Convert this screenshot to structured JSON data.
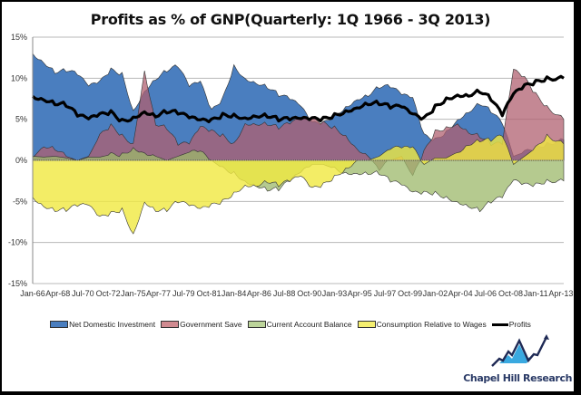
{
  "chart_data": {
    "type": "area",
    "title": "Profits as % of GNP(Quarterly: 1Q 1966 - 3Q 2013)",
    "xlabel": "",
    "ylabel": "",
    "ylim": [
      -15,
      15
    ],
    "y_ticks": [
      "15%",
      "10%",
      "5%",
      "0%",
      "-5%",
      "-10%",
      "-15%"
    ],
    "y_tick_values": [
      15,
      10,
      5,
      0,
      -5,
      -10,
      -15
    ],
    "x_range": [
      1966.0,
      2013.5
    ],
    "x_tick_labels": [
      "Jan-66",
      "Apr-68",
      "Jul-70",
      "Oct-72",
      "Jan-75",
      "Apr-77",
      "Jul-79",
      "Oct-81",
      "Jan-84",
      "Apr-86",
      "Jul-88",
      "Oct-90",
      "Jan-93",
      "Apr-95",
      "Jul-97",
      "Oct-99",
      "Jan-02",
      "Apr-04",
      "Jul-06",
      "Oct-08",
      "Jan-11",
      "Apr-13"
    ],
    "x_tick_values": [
      1966.0,
      1968.25,
      1970.5,
      1972.75,
      1975.0,
      1977.25,
      1979.5,
      1981.75,
      1984.0,
      1986.25,
      1988.5,
      1990.75,
      1993.0,
      1995.25,
      1997.5,
      1999.75,
      2002.0,
      2004.25,
      2006.5,
      2008.75,
      2011.0,
      2013.25
    ],
    "grid": true,
    "legend_position": "bottom",
    "x": [
      1966,
      1967,
      1968,
      1969,
      1970,
      1971,
      1972,
      1973,
      1974,
      1975,
      1976,
      1977,
      1978,
      1979,
      1980,
      1981,
      1982,
      1983,
      1984,
      1985,
      1986,
      1987,
      1988,
      1989,
      1990,
      1991,
      1992,
      1993,
      1994,
      1995,
      1996,
      1997,
      1998,
      1999,
      2000,
      2001,
      2002,
      2003,
      2004,
      2005,
      2006,
      2007,
      2008,
      2009,
      2010,
      2011,
      2012,
      2013.5
    ],
    "series": [
      {
        "name": "Net Domestic Investment",
        "color": "#4a7ebf",
        "values": [
          13,
          12,
          10.8,
          11,
          10.5,
          9,
          9.5,
          11,
          10.5,
          6,
          8.5,
          10,
          11,
          11.5,
          9,
          9.5,
          6,
          7.5,
          11.5,
          10,
          9.5,
          9,
          8,
          7.5,
          6.5,
          4.5,
          4.5,
          5.5,
          6.5,
          7.5,
          8,
          9,
          9,
          8,
          7.5,
          3,
          2.5,
          3.5,
          5,
          6,
          7,
          6,
          4.5,
          0.5,
          1,
          1.5,
          2,
          2.5
        ]
      },
      {
        "name": "Government Save",
        "color": "#c0707a",
        "values": [
          0.3,
          1.8,
          1.5,
          0.5,
          0,
          0.5,
          3,
          4.2,
          3,
          2,
          11,
          4.5,
          4,
          2,
          2,
          4,
          3.5,
          3,
          2,
          4.5,
          4.5,
          4.5,
          4,
          4.5,
          5,
          5,
          4.5,
          4,
          3,
          1.5,
          0.5,
          -1,
          0,
          0.5,
          -2,
          1,
          3.5,
          4,
          4.5,
          3.5,
          3,
          2,
          2,
          11,
          10,
          8,
          6.5,
          5
        ]
      },
      {
        "name": "Current Account Balance",
        "color": "#9cb86a",
        "values": [
          0.5,
          0.4,
          0.5,
          0.3,
          0,
          0.4,
          0.4,
          0.7,
          0.7,
          1.5,
          1,
          0.5,
          0,
          0.5,
          1,
          1,
          0,
          -1,
          -1.5,
          -2.5,
          -3,
          -3.5,
          -3.5,
          -2.5,
          -1.5,
          -0.5,
          -0.5,
          -1,
          -1.5,
          -1.5,
          -1.5,
          -1.5,
          -2.5,
          -3,
          -4,
          -4,
          -4,
          -4.5,
          -5,
          -5.5,
          -6,
          -5,
          -4.5,
          -2.5,
          -3,
          -3,
          -2.5,
          -2.5
        ]
      },
      {
        "name": "Consumption Relative to Wages",
        "color": "#f0e84a",
        "values": [
          -4.5,
          -5.5,
          -6,
          -6,
          -5.5,
          -5.5,
          -7,
          -6.5,
          -6,
          -9,
          -5,
          -6,
          -6,
          -5,
          -5.5,
          -6,
          -5.5,
          -5,
          -4,
          -3,
          -3,
          -2.5,
          -3,
          -2.5,
          -2,
          -3.5,
          -3,
          -2,
          -1,
          0,
          0,
          0.5,
          1.5,
          1.5,
          1.5,
          -0.5,
          0.3,
          0.3,
          1,
          2,
          2.5,
          2.5,
          3,
          -0.5,
          0.5,
          1.5,
          3,
          2
        ]
      },
      {
        "name": "Profits",
        "color": "#000000",
        "values": [
          7.8,
          7.5,
          7,
          6.8,
          5.5,
          5,
          5.5,
          5.8,
          4.8,
          5.2,
          6,
          5.5,
          6,
          5.8,
          5.2,
          4.8,
          4.8,
          5.5,
          5.5,
          5.2,
          5.5,
          5.5,
          5,
          5,
          5,
          5,
          5,
          5.5,
          6,
          6.5,
          7,
          7,
          6.5,
          6.5,
          5.5,
          5,
          6.5,
          7.5,
          8,
          8,
          8.5,
          7.5,
          5.5,
          8,
          9,
          9.5,
          10,
          10
        ]
      }
    ]
  },
  "legend": {
    "items": [
      {
        "label": "Net Domestic Investment",
        "color": "#4a7ebf"
      },
      {
        "label": "Government Save",
        "color": "#c0707a"
      },
      {
        "label": "Current Account Balance",
        "color": "#9cb86a"
      },
      {
        "label": "Consumption Relative to Wages",
        "color": "#f0e84a"
      },
      {
        "label": "Profits",
        "color": "#000000"
      }
    ]
  },
  "branding": {
    "name": "Chapel Hill Research",
    "logo_icon": "mountain-chart-icon"
  }
}
